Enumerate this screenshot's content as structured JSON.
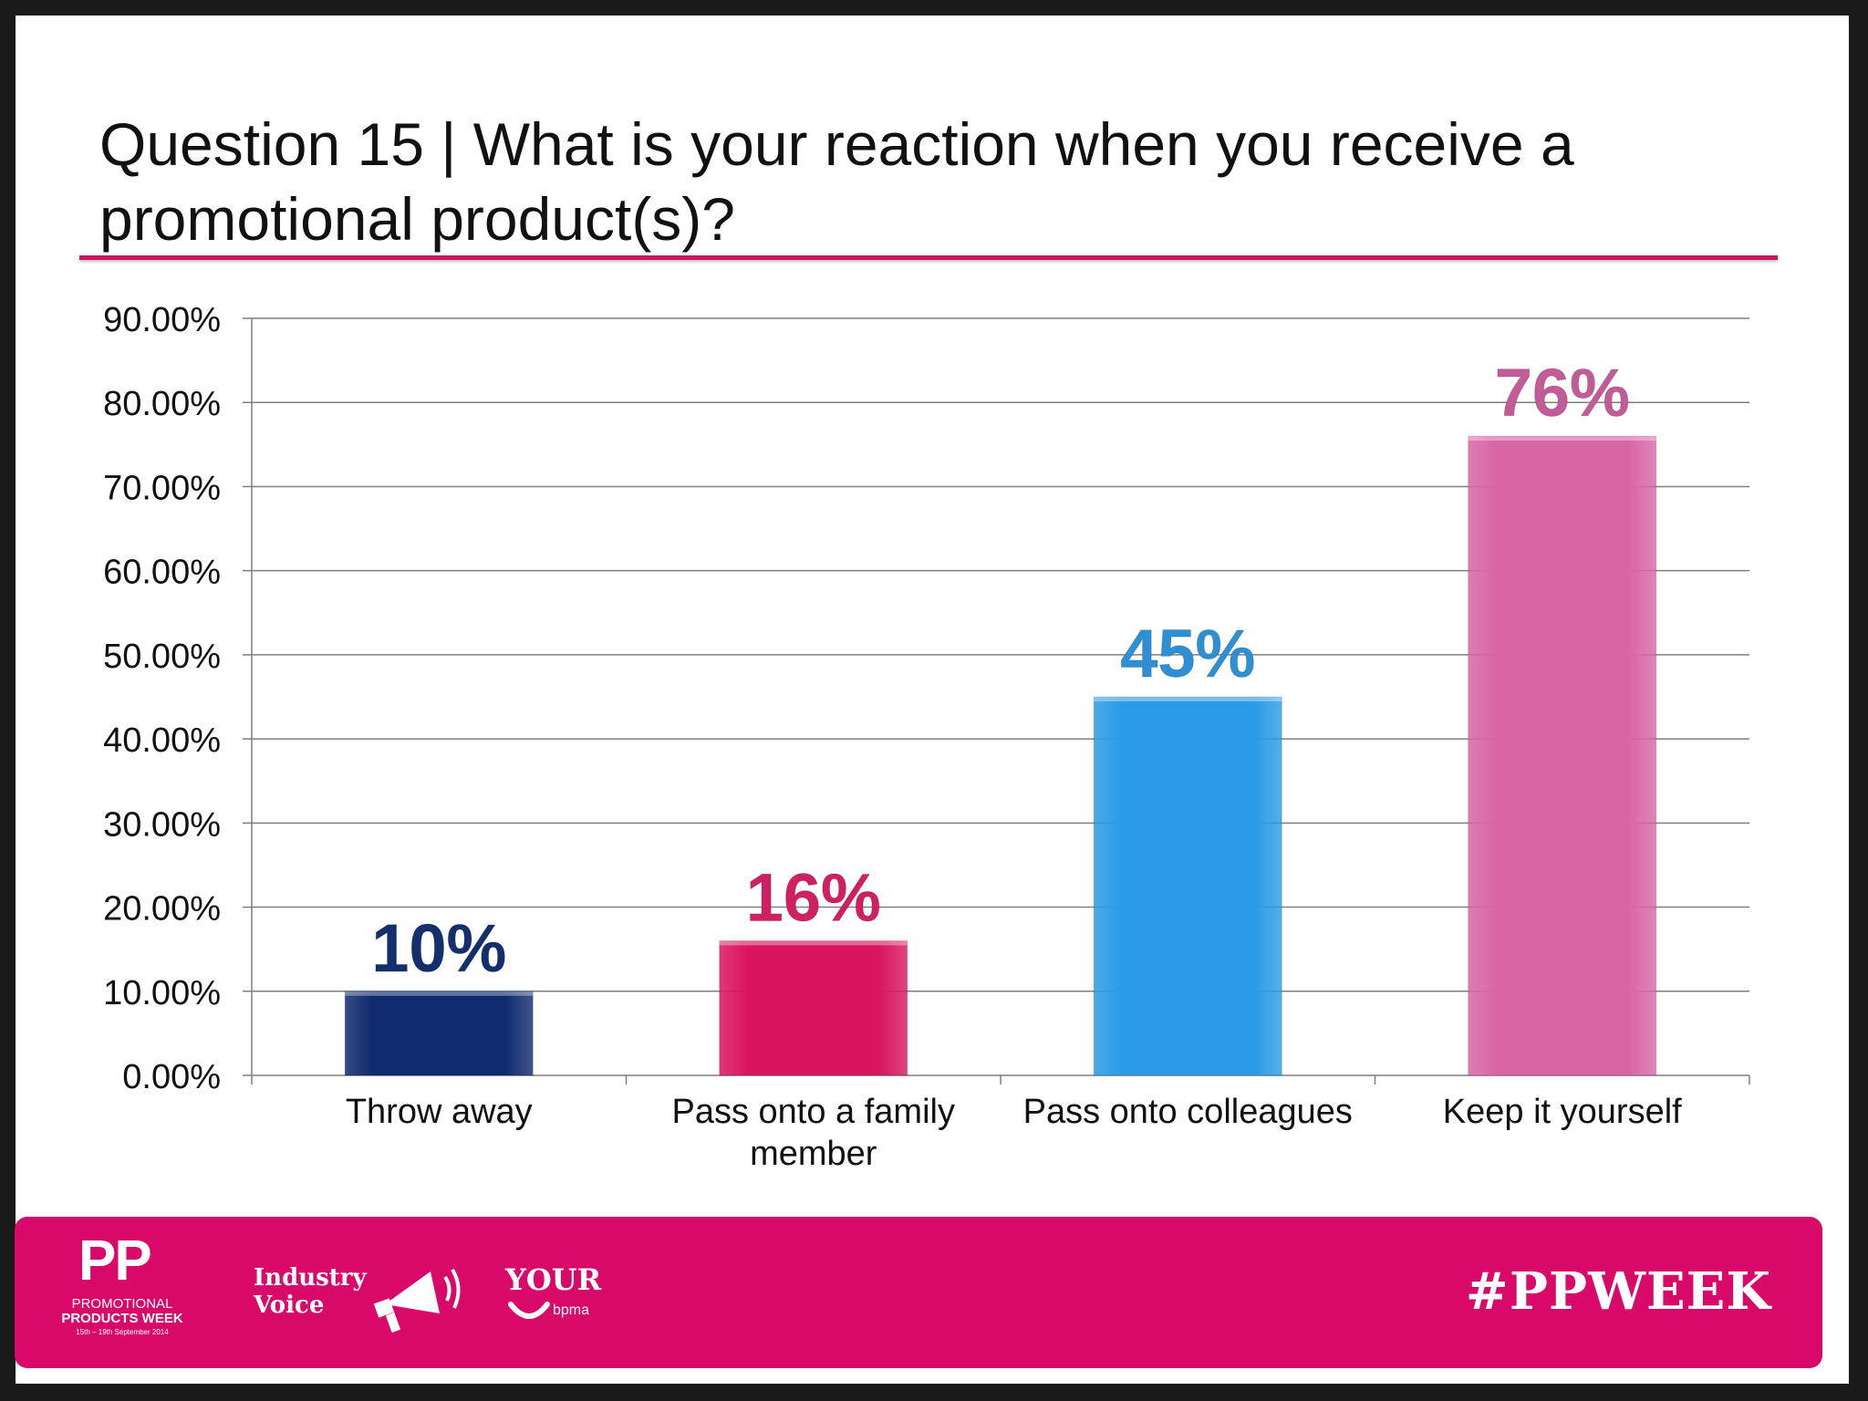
{
  "slide": {
    "title": "Question 15 | What is your reaction when you receive a promotional product(s)?"
  },
  "chart_data": {
    "type": "bar",
    "title": "",
    "xlabel": "",
    "ylabel": "",
    "categories": [
      [
        "Throw away"
      ],
      [
        "Pass onto a family",
        "member"
      ],
      [
        "Pass onto colleagues"
      ],
      [
        "Keep it yourself"
      ]
    ],
    "values": [
      10,
      16,
      45,
      76
    ],
    "value_labels": [
      "10%",
      "16%",
      "45%",
      "76%"
    ],
    "bar_colors": [
      "#0f2a6e",
      "#d9155f",
      "#2a9be6",
      "#d965a6"
    ],
    "label_colors": [
      "#142f6e",
      "#d02062",
      "#2e8fd4",
      "#c25b98"
    ],
    "ylim": [
      0,
      90
    ],
    "yticks": [
      0,
      10,
      20,
      30,
      40,
      50,
      60,
      70,
      80,
      90
    ],
    "ytick_labels": [
      "0.00%",
      "10.00%",
      "20.00%",
      "30.00%",
      "40.00%",
      "50.00%",
      "60.00%",
      "70.00%",
      "80.00%",
      "90.00%"
    ],
    "grid": true,
    "legend": "none"
  },
  "footer": {
    "pp_logo": "PP",
    "pp_line1": "PROMOTIONAL",
    "pp_line2": "PRODUCTS WEEK",
    "pp_line3": "15th – 19th September 2014",
    "industry_voice_1": "Industry",
    "industry_voice_2": "Voice",
    "your": "YOUR",
    "bpma": "bpma",
    "hashtag": "#PPWEEK",
    "background_color": "#d9096a"
  }
}
